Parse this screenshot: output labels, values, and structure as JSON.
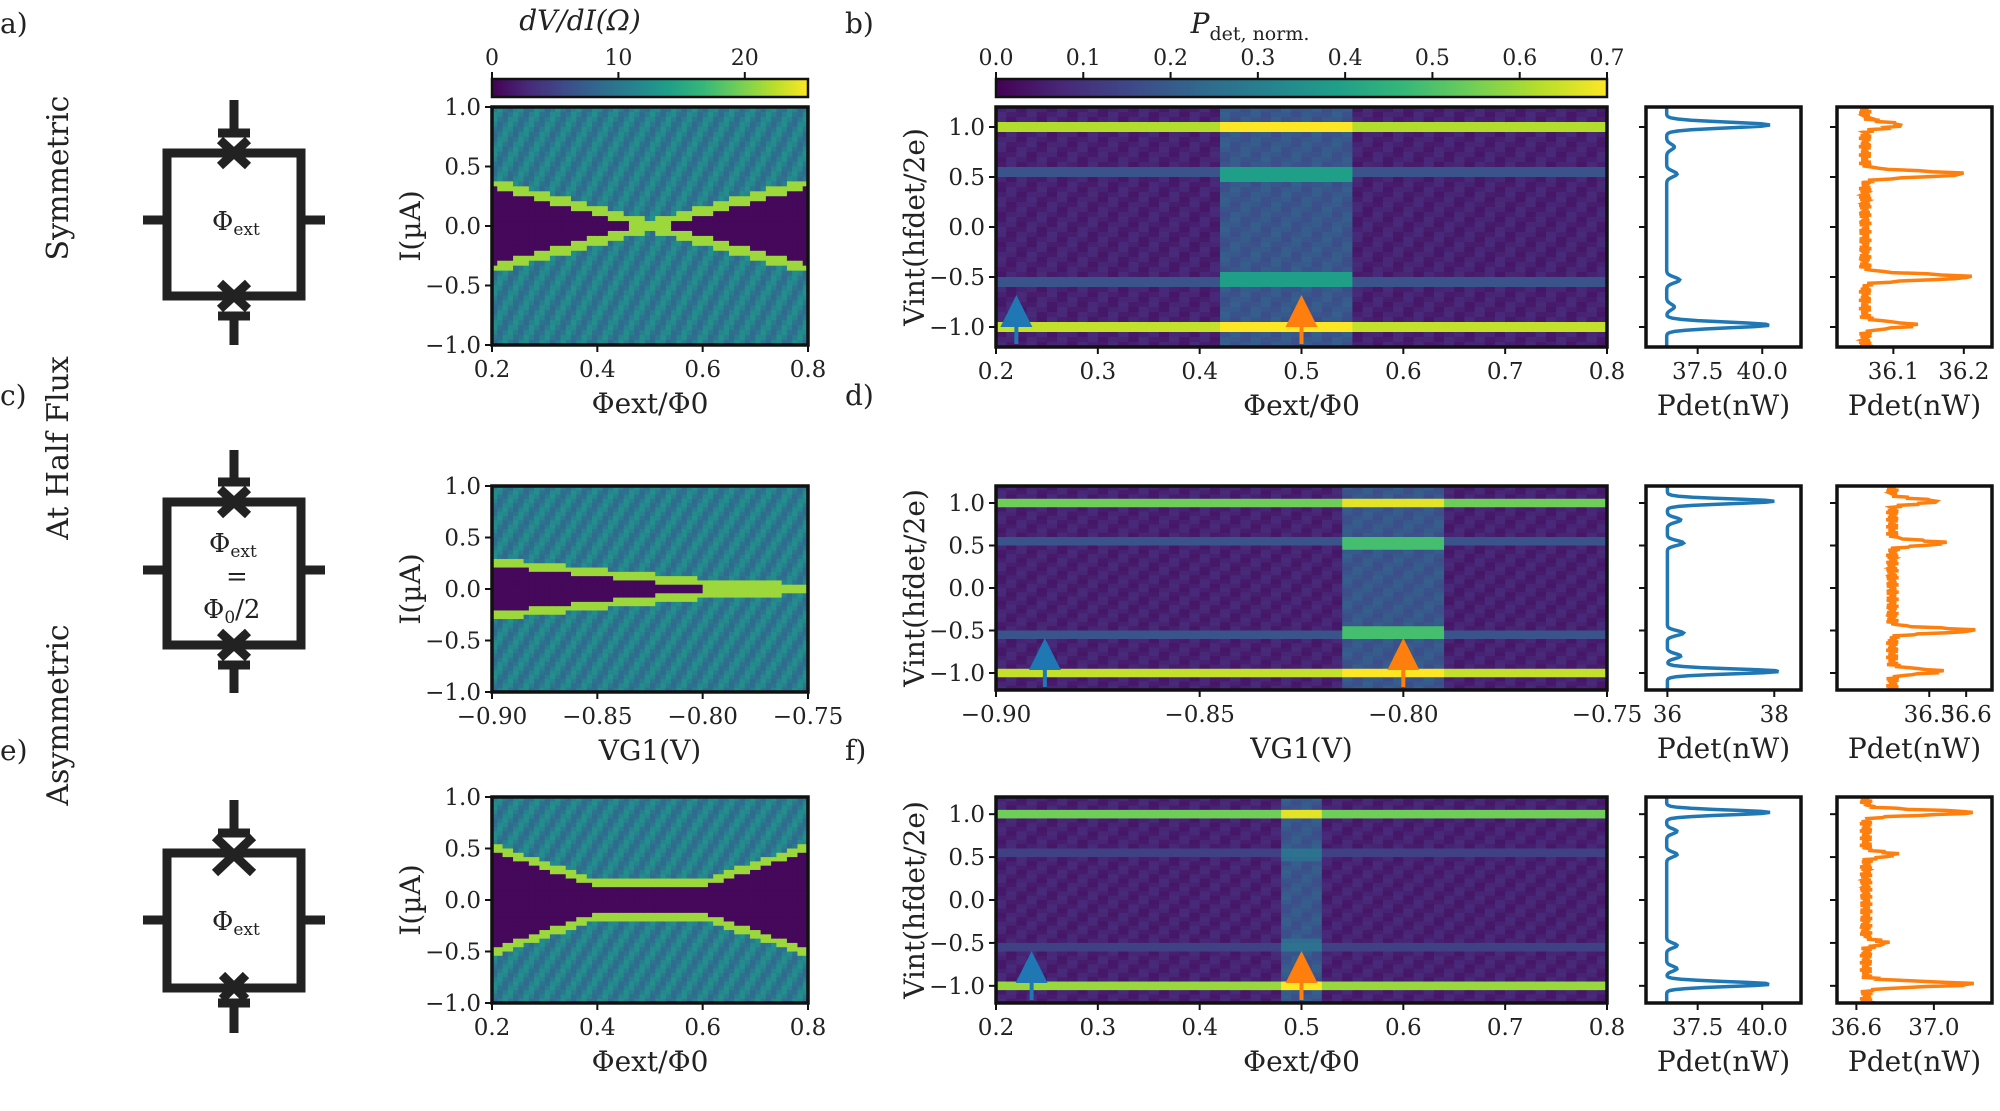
{
  "panels": {
    "a": "a)",
    "b": "b)",
    "c": "c)",
    "d": "d)",
    "e": "e)",
    "f": "f)"
  },
  "row_labels": [
    "Symmetric",
    "At Half Flux",
    "Asymmetric"
  ],
  "circuits": {
    "symmetric": {
      "phi": "Φ",
      "sub": "ext"
    },
    "half_flux": {
      "phi": "Φ",
      "sub": "ext",
      "eq": "=",
      "val_phi": "Φ",
      "val_sub": "0",
      "val_rest": "/2"
    },
    "asymmetric": {
      "phi": "Φ",
      "sub": "ext"
    }
  },
  "colorbars": {
    "left": {
      "label": "dV/dI(Ω)",
      "ticks": [
        "0",
        "10",
        "20"
      ],
      "range": [
        0,
        25
      ]
    },
    "right": {
      "label_main": "P",
      "label_sub": "det, norm.",
      "ticks": [
        "0.0",
        "0.1",
        "0.2",
        "0.3",
        "0.4",
        "0.5",
        "0.6",
        "0.7"
      ],
      "range": [
        0,
        0.7
      ]
    }
  },
  "colors": {
    "viridis": [
      "#440154",
      "#482878",
      "#3e4989",
      "#31688e",
      "#26828e",
      "#1f9e89",
      "#35b779",
      "#6ece58",
      "#b5de2b",
      "#fde725"
    ],
    "blue": "#1f77b4",
    "orange": "#ff7f0e"
  },
  "chart_data": [
    {
      "id": "a",
      "type": "heatmap",
      "xlabel": "Φext/Φ0",
      "ylabel": "I(µA)",
      "xlim": [
        0.2,
        0.8
      ],
      "ylim": [
        -1.0,
        1.0
      ],
      "xticks": [
        "0.2",
        "0.4",
        "0.6",
        "0.8"
      ],
      "yticks": [
        "1.0",
        "0.5",
        "0.0",
        "-0.5",
        "-1.0"
      ],
      "switching_current": {
        "x": [
          0.2,
          0.5,
          0.8
        ],
        "y": [
          0.35,
          0.0,
          0.35
        ]
      }
    },
    {
      "id": "b",
      "type": "heatmap",
      "xlabel": "Φext/Φ0",
      "ylabel": "Vint(hfdet/2e)",
      "xlim": [
        0.2,
        0.8
      ],
      "ylim": [
        -1.2,
        1.2
      ],
      "xticks": [
        "0.2",
        "0.3",
        "0.4",
        "0.5",
        "0.6",
        "0.7",
        "0.8"
      ],
      "yticks": [
        "1.0",
        "0.5",
        "0.0",
        "-0.5",
        "-1.0"
      ],
      "lines": [
        {
          "y": 1.02,
          "level": 0.68
        },
        {
          "y": -0.98,
          "level": 0.7
        },
        {
          "y": 0.53,
          "level": 0.2
        },
        {
          "y": -0.53,
          "level": 0.2
        }
      ],
      "bright_band": {
        "x": [
          0.42,
          0.55
        ],
        "level": 0.4
      },
      "arrows": [
        {
          "x": 0.22,
          "color": "blue"
        },
        {
          "x": 0.5,
          "color": "orange"
        }
      ]
    },
    {
      "id": "c",
      "type": "heatmap",
      "xlabel": "VG1(V)",
      "ylabel": "I(µA)",
      "xlim": [
        -0.9,
        -0.75
      ],
      "ylim": [
        -1.0,
        1.0
      ],
      "xticks": [
        "−0.90",
        "−0.85",
        "−0.80",
        "−0.75"
      ],
      "yticks": [
        "1.0",
        "0.5",
        "0.0",
        "-0.5",
        "-1.0"
      ],
      "switching_current": {
        "x": [
          -0.9,
          -0.8,
          -0.75
        ],
        "y": [
          0.25,
          0.05,
          0.0
        ]
      }
    },
    {
      "id": "d",
      "type": "heatmap",
      "xlabel": "VG1(V)",
      "ylabel": "Vint(hfdet/2e)",
      "xlim": [
        -0.9,
        -0.75
      ],
      "ylim": [
        -1.2,
        1.2
      ],
      "xticks": [
        "−0.90",
        "−0.85",
        "−0.80",
        "−0.75"
      ],
      "yticks": [
        "1.0",
        "0.5",
        "0.0",
        "-0.5",
        "-1.0"
      ],
      "lines": [
        {
          "y": 1.02,
          "level": 0.6
        },
        {
          "y": -0.98,
          "level": 0.7
        },
        {
          "y": 0.53,
          "level": 0.2
        },
        {
          "y": -0.53,
          "level": 0.2
        }
      ],
      "bright_band": {
        "x": [
          -0.815,
          -0.79
        ],
        "level": 0.5
      },
      "arrows": [
        {
          "x": -0.888,
          "color": "blue"
        },
        {
          "x": -0.8,
          "color": "orange"
        }
      ]
    },
    {
      "id": "e",
      "type": "heatmap",
      "xlabel": "Φext/Φ0",
      "ylabel": "I(µA)",
      "xlim": [
        0.2,
        0.8
      ],
      "ylim": [
        -1.0,
        1.0
      ],
      "xticks": [
        "0.2",
        "0.4",
        "0.6",
        "0.8"
      ],
      "yticks": [
        "1.0",
        "0.5",
        "0.0",
        "-0.5",
        "-1.0"
      ],
      "switching_current": {
        "x": [
          0.2,
          0.4,
          0.6,
          0.8
        ],
        "y": [
          0.5,
          0.15,
          0.15,
          0.5
        ]
      }
    },
    {
      "id": "f",
      "type": "heatmap",
      "xlabel": "Φext/Φ0",
      "ylabel": "Vint(hfdet/2e)",
      "xlim": [
        0.2,
        0.8
      ],
      "ylim": [
        -1.2,
        1.2
      ],
      "xticks": [
        "0.2",
        "0.3",
        "0.4",
        "0.5",
        "0.6",
        "0.7",
        "0.8"
      ],
      "yticks": [
        "1.0",
        "0.5",
        "0.0",
        "-0.5",
        "-1.0"
      ],
      "lines": [
        {
          "y": 1.02,
          "level": 0.6
        },
        {
          "y": -0.98,
          "level": 0.65
        },
        {
          "y": 0.53,
          "level": 0.15
        },
        {
          "y": -0.53,
          "level": 0.15
        }
      ],
      "bright_band": {
        "x": [
          0.48,
          0.52
        ],
        "level": 0.25
      },
      "arrows": [
        {
          "x": 0.235,
          "color": "blue"
        },
        {
          "x": 0.5,
          "color": "orange"
        }
      ]
    },
    {
      "id": "b-blue",
      "type": "line",
      "color": "blue",
      "xlabel": "Pdet(nW)",
      "xticks": [
        "37.5",
        "40.0"
      ],
      "xlim": [
        35.5,
        41.5
      ],
      "ylim": [
        -1.2,
        1.2
      ],
      "baseline": 36.3,
      "peaks": [
        {
          "y": 1.02,
          "h": 4.0
        },
        {
          "y": -0.98,
          "h": 4.0
        },
        {
          "y": 0.53,
          "h": 0.4
        },
        {
          "y": -0.53,
          "h": 0.5
        },
        {
          "y": 0.8,
          "h": 0.3
        },
        {
          "y": -0.8,
          "h": 0.3
        }
      ]
    },
    {
      "id": "b-orange",
      "type": "line",
      "color": "orange",
      "xlabel": "Pdet(nW)",
      "xticks": [
        "36.1",
        "36.2"
      ],
      "xlim": [
        36.02,
        36.24
      ],
      "ylim": [
        -1.2,
        1.2
      ],
      "baseline": 36.06,
      "peaks": [
        {
          "y": 1.02,
          "h": 0.05
        },
        {
          "y": 0.53,
          "h": 0.14
        },
        {
          "y": -0.5,
          "h": 0.15
        },
        {
          "y": -0.98,
          "h": 0.07
        }
      ]
    },
    {
      "id": "d-blue",
      "type": "line",
      "color": "blue",
      "xlabel": "Pdet(nW)",
      "xticks": [
        "36",
        "38"
      ],
      "xlim": [
        35.6,
        38.5
      ],
      "ylim": [
        -1.2,
        1.2
      ],
      "baseline": 36.0,
      "peaks": [
        {
          "y": 1.02,
          "h": 2.0
        },
        {
          "y": -0.98,
          "h": 2.1
        },
        {
          "y": 0.53,
          "h": 0.3
        },
        {
          "y": -0.53,
          "h": 0.3
        },
        {
          "y": 0.8,
          "h": 0.25
        },
        {
          "y": -0.8,
          "h": 0.25
        }
      ]
    },
    {
      "id": "d-orange",
      "type": "line",
      "color": "orange",
      "xlabel": "Pdet(nW)",
      "xticks": [
        "36.5",
        "36.6"
      ],
      "xlim": [
        36.25,
        36.67
      ],
      "ylim": [
        -1.2,
        1.2
      ],
      "baseline": 36.4,
      "peaks": [
        {
          "y": 1.02,
          "h": 0.12
        },
        {
          "y": 0.53,
          "h": 0.14
        },
        {
          "y": -0.5,
          "h": 0.22
        },
        {
          "y": -0.98,
          "h": 0.13
        }
      ]
    },
    {
      "id": "f-blue",
      "type": "line",
      "color": "blue",
      "xlabel": "Pdet(nW)",
      "xticks": [
        "37.5",
        "40.0"
      ],
      "xlim": [
        35.5,
        41.5
      ],
      "ylim": [
        -1.2,
        1.2
      ],
      "baseline": 36.3,
      "peaks": [
        {
          "y": 1.02,
          "h": 4.0
        },
        {
          "y": -0.98,
          "h": 4.0
        },
        {
          "y": 0.53,
          "h": 0.4
        },
        {
          "y": -0.53,
          "h": 0.4
        },
        {
          "y": 0.8,
          "h": 0.4
        },
        {
          "y": -0.8,
          "h": 0.4
        }
      ]
    },
    {
      "id": "f-orange",
      "type": "line",
      "color": "orange",
      "xlabel": "Pdet(nW)",
      "xticks": [
        "36.6",
        "37.0"
      ],
      "xlim": [
        36.5,
        37.3
      ],
      "ylim": [
        -1.2,
        1.2
      ],
      "baseline": 36.65,
      "peaks": [
        {
          "y": 1.02,
          "h": 0.55
        },
        {
          "y": 0.53,
          "h": 0.15
        },
        {
          "y": -0.5,
          "h": 0.1
        },
        {
          "y": -0.98,
          "h": 0.55
        }
      ]
    }
  ]
}
